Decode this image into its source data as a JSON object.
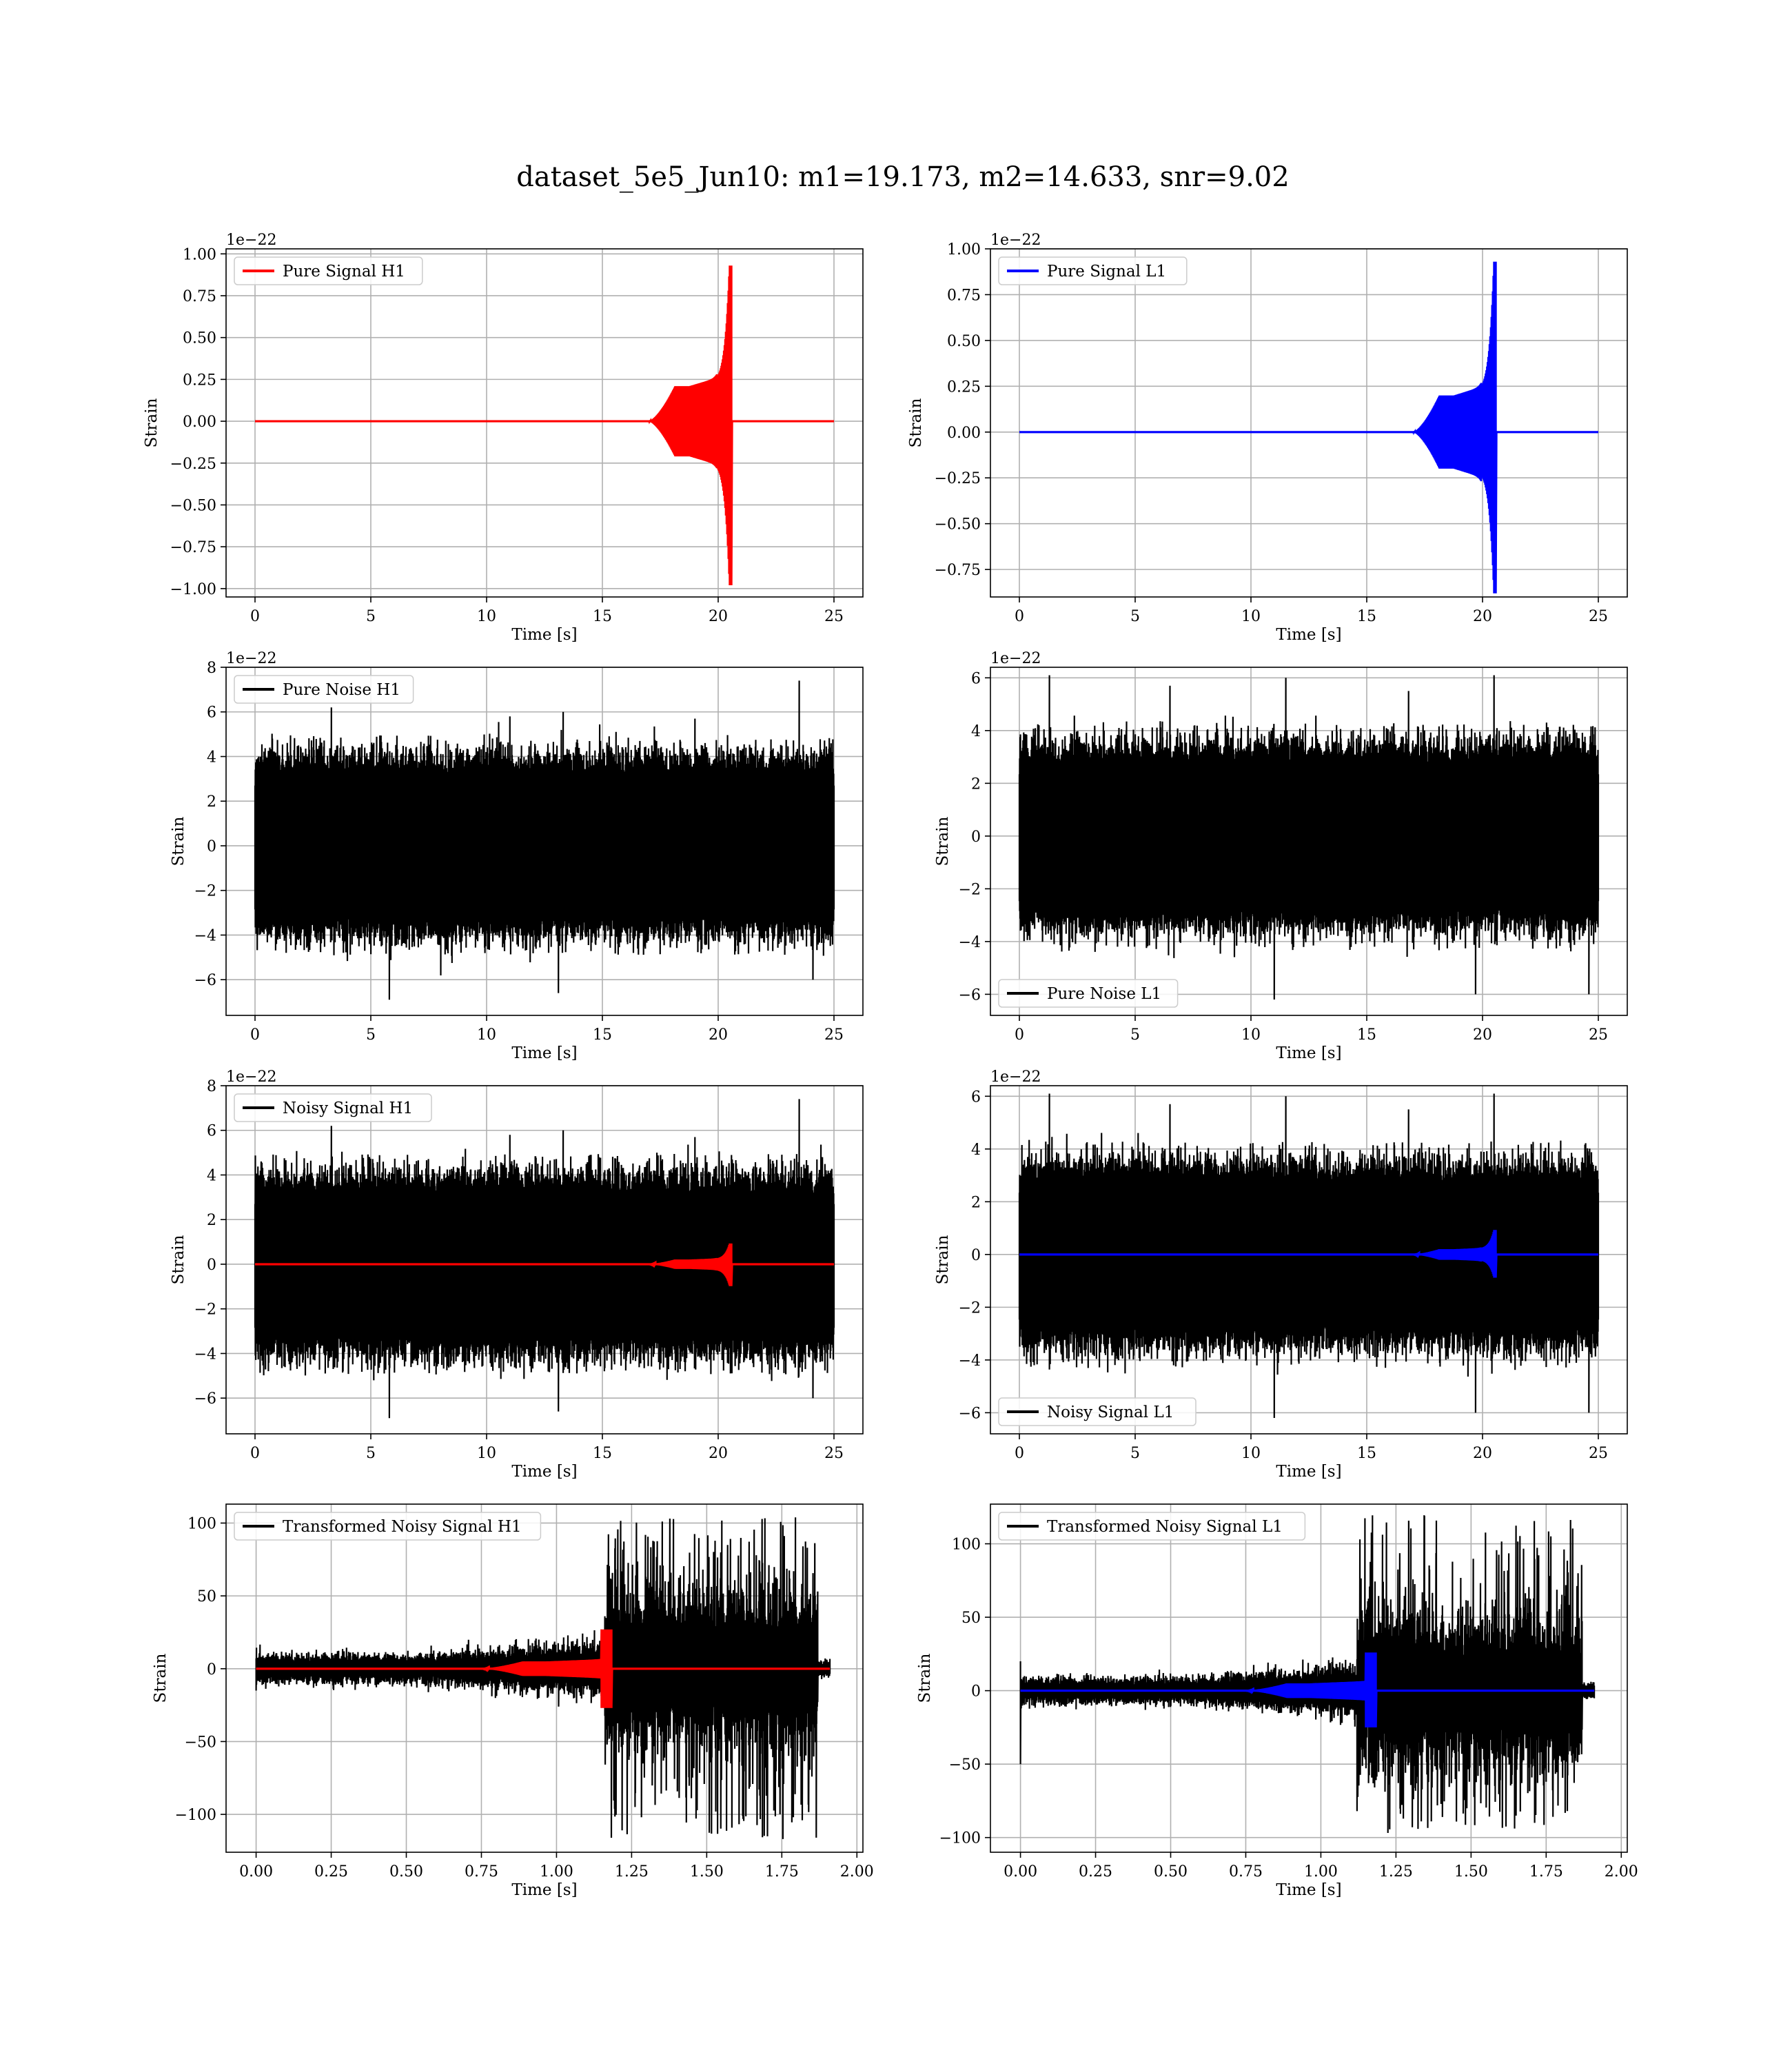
{
  "figure": {
    "title": "dataset_5e5_Jun10: m1=19.173, m2=14.633, snr=9.02"
  },
  "colors": {
    "h1_signal": "#ff0000",
    "l1_signal": "#0000ff",
    "noise": "#000000",
    "grid": "#b0b0b0"
  },
  "chart_data": [
    {
      "id": "pure-signal-h1",
      "type": "line",
      "row": 0,
      "col": 0,
      "xlabel": "Time [s]",
      "ylabel": "Strain",
      "offset_label": "1e−22",
      "xlim": [
        -1.25,
        26.25
      ],
      "ylim": [
        -1.05,
        1.03
      ],
      "xticks": [
        0,
        5,
        10,
        15,
        20,
        25
      ],
      "xtick_labels": [
        "0",
        "5",
        "10",
        "15",
        "20",
        "25"
      ],
      "yticks": [
        1.0,
        0.75,
        0.5,
        0.25,
        0.0,
        -0.25,
        -0.5,
        -0.75,
        -1.0
      ],
      "ytick_labels": [
        "1.00",
        "0.75",
        "0.50",
        "0.25",
        "0.00",
        "−0.25",
        "−0.50",
        "−0.75",
        "−1.00"
      ],
      "legend": {
        "placement": "upper-left"
      },
      "series": [
        {
          "name": "Pure Signal H1",
          "kind": "chirp",
          "color": "#ff0000",
          "x_start": 0,
          "x_end": 25,
          "onset": 17.0,
          "plateau": 0.21,
          "merger": 20.55,
          "peak_pos": 0.93,
          "peak_neg": -0.98
        }
      ]
    },
    {
      "id": "pure-signal-l1",
      "type": "line",
      "row": 0,
      "col": 1,
      "xlabel": "Time [s]",
      "ylabel": "Strain",
      "offset_label": "1e−22",
      "xlim": [
        -1.25,
        26.25
      ],
      "ylim": [
        -0.9,
        1.0
      ],
      "xticks": [
        0,
        5,
        10,
        15,
        20,
        25
      ],
      "xtick_labels": [
        "0",
        "5",
        "10",
        "15",
        "20",
        "25"
      ],
      "yticks": [
        1.0,
        0.75,
        0.5,
        0.25,
        0.0,
        -0.25,
        -0.5,
        -0.75
      ],
      "ytick_labels": [
        "1.00",
        "0.75",
        "0.50",
        "0.25",
        "0.00",
        "−0.25",
        "−0.50",
        "−0.75"
      ],
      "legend": {
        "placement": "upper-left"
      },
      "series": [
        {
          "name": "Pure Signal L1",
          "kind": "chirp",
          "color": "#0000ff",
          "x_start": 0,
          "x_end": 25,
          "onset": 17.0,
          "plateau": 0.2,
          "merger": 20.55,
          "peak_pos": 0.93,
          "peak_neg": -0.88
        }
      ]
    },
    {
      "id": "pure-noise-h1",
      "type": "line",
      "row": 1,
      "col": 0,
      "xlabel": "Time [s]",
      "ylabel": "Strain",
      "offset_label": "1e−22",
      "xlim": [
        -1.25,
        26.25
      ],
      "ylim": [
        -7.6,
        8.0
      ],
      "xticks": [
        0,
        5,
        10,
        15,
        20,
        25
      ],
      "xtick_labels": [
        "0",
        "5",
        "10",
        "15",
        "20",
        "25"
      ],
      "yticks": [
        8,
        6,
        4,
        2,
        0,
        -2,
        -4,
        -6
      ],
      "ytick_labels": [
        "8",
        "6",
        "4",
        "2",
        "0",
        "−2",
        "−4",
        "−6"
      ],
      "legend": {
        "placement": "upper-left"
      },
      "series": [
        {
          "name": "Pure Noise H1",
          "kind": "noise",
          "color": "#000000",
          "x_start": 0,
          "x_end": 25,
          "band": 3.0,
          "max": 7.4,
          "min": -6.9,
          "spikes": [
            [
              3.3,
              6.2
            ],
            [
              13.3,
              6.0
            ],
            [
              23.5,
              7.4
            ],
            [
              5.8,
              -6.9
            ],
            [
              13.1,
              -6.6
            ],
            [
              24.1,
              -6.0
            ],
            [
              11.0,
              5.8
            ],
            [
              19.0,
              5.7
            ]
          ]
        }
      ]
    },
    {
      "id": "pure-noise-l1",
      "type": "line",
      "row": 1,
      "col": 1,
      "xlabel": "Time [s]",
      "ylabel": "Strain",
      "offset_label": "1e−22",
      "xlim": [
        -1.25,
        26.25
      ],
      "ylim": [
        -6.8,
        6.4
      ],
      "xticks": [
        0,
        5,
        10,
        15,
        20,
        25
      ],
      "xtick_labels": [
        "0",
        "5",
        "10",
        "15",
        "20",
        "25"
      ],
      "yticks": [
        6,
        4,
        2,
        0,
        -2,
        -4,
        -6
      ],
      "ytick_labels": [
        "6",
        "4",
        "2",
        "0",
        "−2",
        "−4",
        "−6"
      ],
      "legend": {
        "placement": "lower-left"
      },
      "series": [
        {
          "name": "Pure Noise L1",
          "kind": "noise",
          "color": "#000000",
          "x_start": 0,
          "x_end": 25,
          "band": 2.6,
          "max": 6.2,
          "min": -6.2,
          "spikes": [
            [
              1.3,
              6.1
            ],
            [
              11.5,
              6.0
            ],
            [
              20.5,
              6.1
            ],
            [
              11.0,
              -6.2
            ],
            [
              19.7,
              -6.0
            ],
            [
              24.6,
              -6.0
            ],
            [
              6.5,
              5.7
            ],
            [
              16.8,
              5.5
            ]
          ]
        }
      ]
    },
    {
      "id": "noisy-signal-h1",
      "type": "line",
      "row": 2,
      "col": 0,
      "xlabel": "Time [s]",
      "ylabel": "Strain",
      "offset_label": "1e−22",
      "xlim": [
        -1.25,
        26.25
      ],
      "ylim": [
        -7.6,
        8.0
      ],
      "xticks": [
        0,
        5,
        10,
        15,
        20,
        25
      ],
      "xtick_labels": [
        "0",
        "5",
        "10",
        "15",
        "20",
        "25"
      ],
      "yticks": [
        8,
        6,
        4,
        2,
        0,
        -2,
        -4,
        -6
      ],
      "ytick_labels": [
        "8",
        "6",
        "4",
        "2",
        "0",
        "−2",
        "−4",
        "−6"
      ],
      "legend": {
        "placement": "upper-left"
      },
      "series": [
        {
          "name": "Noisy Signal H1",
          "kind": "noise",
          "color": "#000000",
          "x_start": 0,
          "x_end": 25,
          "band": 3.0,
          "max": 7.4,
          "min": -6.9,
          "spikes": [
            [
              3.3,
              6.2
            ],
            [
              13.3,
              6.0
            ],
            [
              23.5,
              7.4
            ],
            [
              5.8,
              -6.9
            ],
            [
              13.1,
              -6.6
            ],
            [
              24.1,
              -6.0
            ],
            [
              11.0,
              5.8
            ],
            [
              19.0,
              5.7
            ]
          ]
        },
        {
          "kind": "chirp",
          "color": "#ff0000",
          "x_start": 0,
          "x_end": 25,
          "onset": 17.0,
          "plateau": 0.21,
          "merger": 20.55,
          "peak_pos": 0.93,
          "peak_neg": -0.98
        }
      ]
    },
    {
      "id": "noisy-signal-l1",
      "type": "line",
      "row": 2,
      "col": 1,
      "xlabel": "Time [s]",
      "ylabel": "Strain",
      "offset_label": "1e−22",
      "xlim": [
        -1.25,
        26.25
      ],
      "ylim": [
        -6.8,
        6.4
      ],
      "xticks": [
        0,
        5,
        10,
        15,
        20,
        25
      ],
      "xtick_labels": [
        "0",
        "5",
        "10",
        "15",
        "20",
        "25"
      ],
      "yticks": [
        6,
        4,
        2,
        0,
        -2,
        -4,
        -6
      ],
      "ytick_labels": [
        "6",
        "4",
        "2",
        "0",
        "−2",
        "−4",
        "−6"
      ],
      "legend": {
        "placement": "lower-left"
      },
      "series": [
        {
          "name": "Noisy Signal L1",
          "kind": "noise",
          "color": "#000000",
          "x_start": 0,
          "x_end": 25,
          "band": 2.6,
          "max": 6.2,
          "min": -6.2,
          "spikes": [
            [
              1.3,
              6.1
            ],
            [
              11.5,
              6.0
            ],
            [
              20.5,
              6.1
            ],
            [
              11.0,
              -6.2
            ],
            [
              19.7,
              -6.0
            ],
            [
              24.6,
              -6.0
            ],
            [
              6.5,
              5.7
            ],
            [
              16.8,
              5.5
            ]
          ]
        },
        {
          "kind": "chirp",
          "color": "#0000ff",
          "x_start": 0,
          "x_end": 25,
          "onset": 17.0,
          "plateau": 0.2,
          "merger": 20.55,
          "peak_pos": 0.93,
          "peak_neg": -0.88
        }
      ]
    },
    {
      "id": "transformed-noisy-signal-h1",
      "type": "line",
      "row": 3,
      "col": 0,
      "xlabel": "Time [s]",
      "ylabel": "Strain",
      "offset_label": "",
      "xlim": [
        -0.1,
        2.02
      ],
      "ylim": [
        -126,
        113
      ],
      "xticks": [
        0.0,
        0.25,
        0.5,
        0.75,
        1.0,
        1.25,
        1.5,
        1.75,
        2.0
      ],
      "xtick_labels": [
        "0.00",
        "0.25",
        "0.50",
        "0.75",
        "1.00",
        "1.25",
        "1.50",
        "1.75",
        "2.00"
      ],
      "yticks": [
        100,
        50,
        0,
        -50,
        -100
      ],
      "ytick_labels": [
        "100",
        "50",
        "0",
        "−50",
        "−100"
      ],
      "legend": {
        "placement": "upper-left"
      },
      "series": [
        {
          "name": "Transformed Noisy Signal H1",
          "kind": "whitened",
          "color": "#000000",
          "x_start": 0.0,
          "x_end": 1.91,
          "early_band": 8,
          "grow_start": 0.55,
          "transition": 1.16,
          "late_band": 40,
          "late_end": 1.87,
          "max": 105,
          "min": -118,
          "start_dip": -15
        },
        {
          "kind": "chirp",
          "color": "#ff0000",
          "x_start": 0.0,
          "x_end": 1.91,
          "onset": 0.75,
          "plateau": 5,
          "merger": 1.18,
          "peak_pos": 27,
          "peak_neg": -27
        }
      ]
    },
    {
      "id": "transformed-noisy-signal-l1",
      "type": "line",
      "row": 3,
      "col": 1,
      "xlabel": "Time [s]",
      "ylabel": "Strain",
      "offset_label": "",
      "xlim": [
        -0.1,
        2.02
      ],
      "ylim": [
        -110,
        127
      ],
      "xticks": [
        0.0,
        0.25,
        0.5,
        0.75,
        1.0,
        1.25,
        1.5,
        1.75,
        2.0
      ],
      "xtick_labels": [
        "0.00",
        "0.25",
        "0.50",
        "0.75",
        "1.00",
        "1.25",
        "1.50",
        "1.75",
        "2.00"
      ],
      "yticks": [
        100,
        50,
        0,
        -50,
        -100
      ],
      "ytick_labels": [
        "100",
        "50",
        "0",
        "−50",
        "−100"
      ],
      "legend": {
        "placement": "upper-left"
      },
      "series": [
        {
          "name": "Transformed Noisy Signal L1",
          "kind": "whitened",
          "color": "#000000",
          "x_start": 0.0,
          "x_end": 1.91,
          "early_band": 7,
          "grow_start": 0.55,
          "transition": 1.12,
          "late_band": 38,
          "late_end": 1.87,
          "max": 120,
          "min": -97,
          "start_dip": -50,
          "start_peak": 20
        },
        {
          "kind": "chirp",
          "color": "#0000ff",
          "x_start": 0.0,
          "x_end": 1.91,
          "onset": 0.75,
          "plateau": 5,
          "merger": 1.18,
          "peak_pos": 26,
          "peak_neg": -25
        }
      ]
    }
  ]
}
